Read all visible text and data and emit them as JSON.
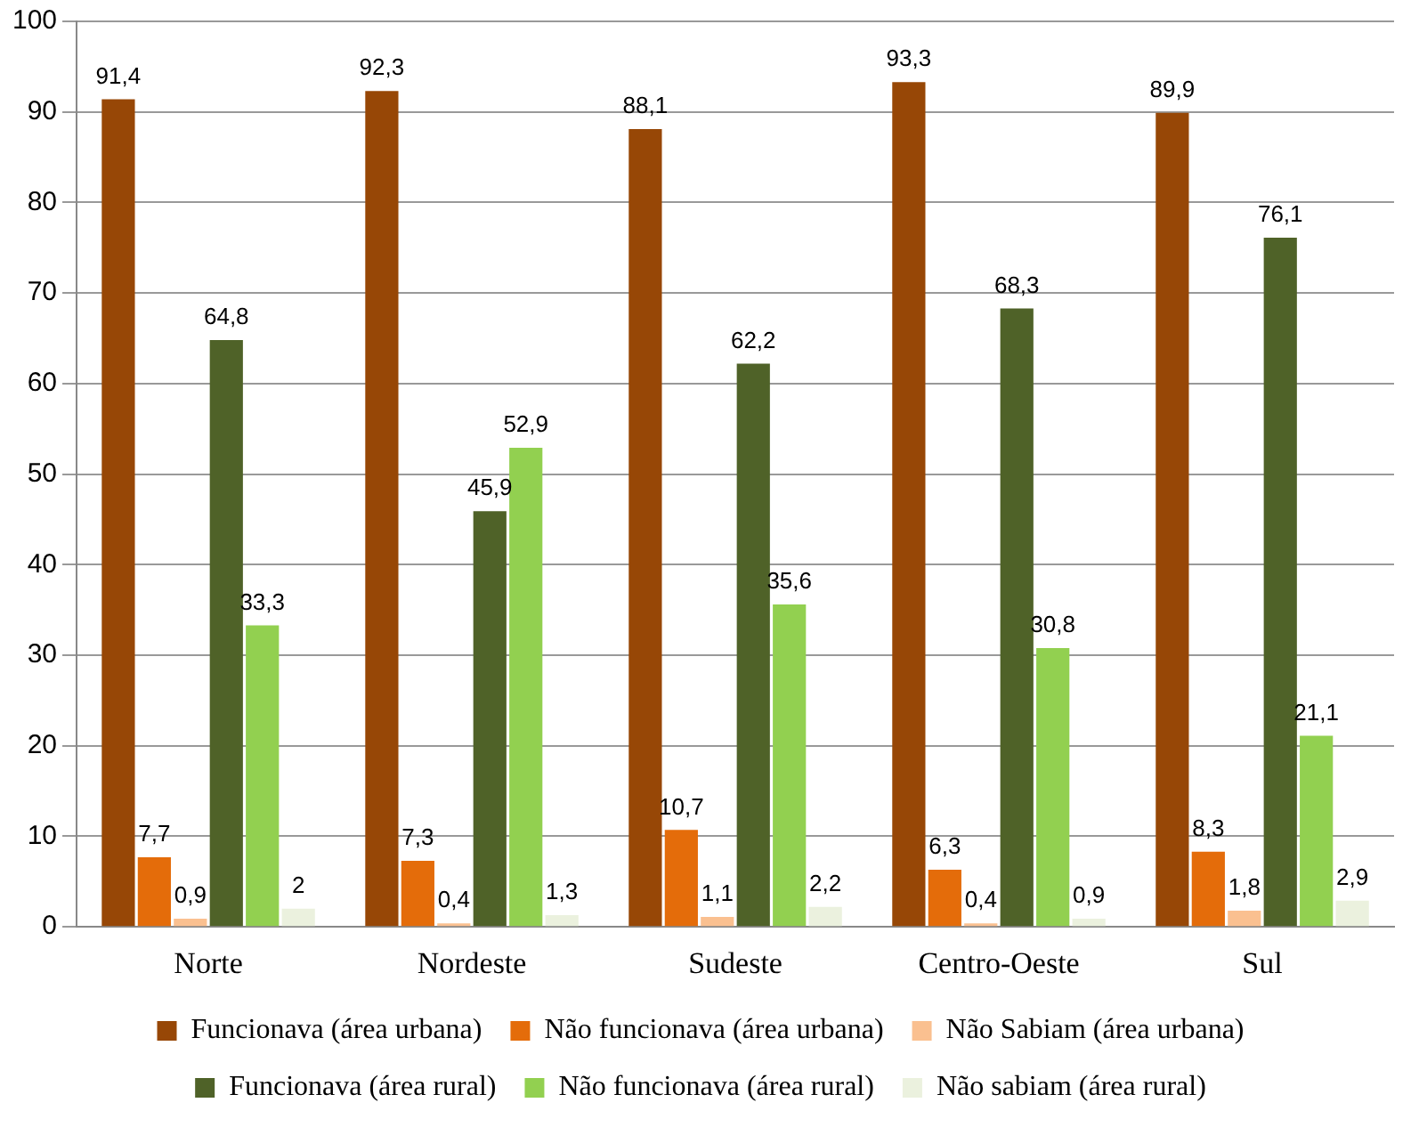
{
  "chart_data": {
    "type": "bar",
    "categories": [
      "Norte",
      "Nordeste",
      "Sudeste",
      "Centro-Oeste",
      "Sul"
    ],
    "series": [
      {
        "name": "Funcionava (área urbana)",
        "color": "#974706",
        "values": [
          91.4,
          92.3,
          88.1,
          93.3,
          89.9
        ],
        "value_labels": [
          "91,4",
          "92,3",
          "88,1",
          "93,3",
          "89,9"
        ]
      },
      {
        "name": "Não funcionava (área urbana)",
        "color": "#e46c0a",
        "values": [
          7.7,
          7.3,
          10.7,
          6.3,
          8.3
        ],
        "value_labels": [
          "7,7",
          "7,3",
          "10,7",
          "6,3",
          "8,3"
        ]
      },
      {
        "name": "Não Sabiam (área urbana)",
        "color": "#fac090",
        "values": [
          0.9,
          0.4,
          1.1,
          0.4,
          1.8
        ],
        "value_labels": [
          "0,9",
          "0,4",
          "1,1",
          "0,4",
          "1,8"
        ]
      },
      {
        "name": "Funcionava (área rural)",
        "color": "#4f6228",
        "values": [
          64.8,
          45.9,
          62.2,
          68.3,
          76.1
        ],
        "value_labels": [
          "64,8",
          "45,9",
          "62,2",
          "68,3",
          "76,1"
        ]
      },
      {
        "name": "Não funcionava (área rural)",
        "color": "#92d050",
        "values": [
          33.3,
          52.9,
          35.6,
          30.8,
          21.1
        ],
        "value_labels": [
          "33,3",
          "52,9",
          "35,6",
          "30,8",
          "21,1"
        ]
      },
      {
        "name": "Não sabiam (área rural)",
        "color": "#ebf1de",
        "values": [
          2,
          1.3,
          2.2,
          0.9,
          2.9
        ],
        "value_labels": [
          "2",
          "1,3",
          "2,2",
          "0,9",
          "2,9"
        ]
      }
    ],
    "ylim": [
      0,
      100
    ],
    "yticks": [
      0,
      10,
      20,
      30,
      40,
      50,
      60,
      70,
      80,
      90,
      100
    ],
    "grid": "y",
    "legend": "bottom"
  }
}
